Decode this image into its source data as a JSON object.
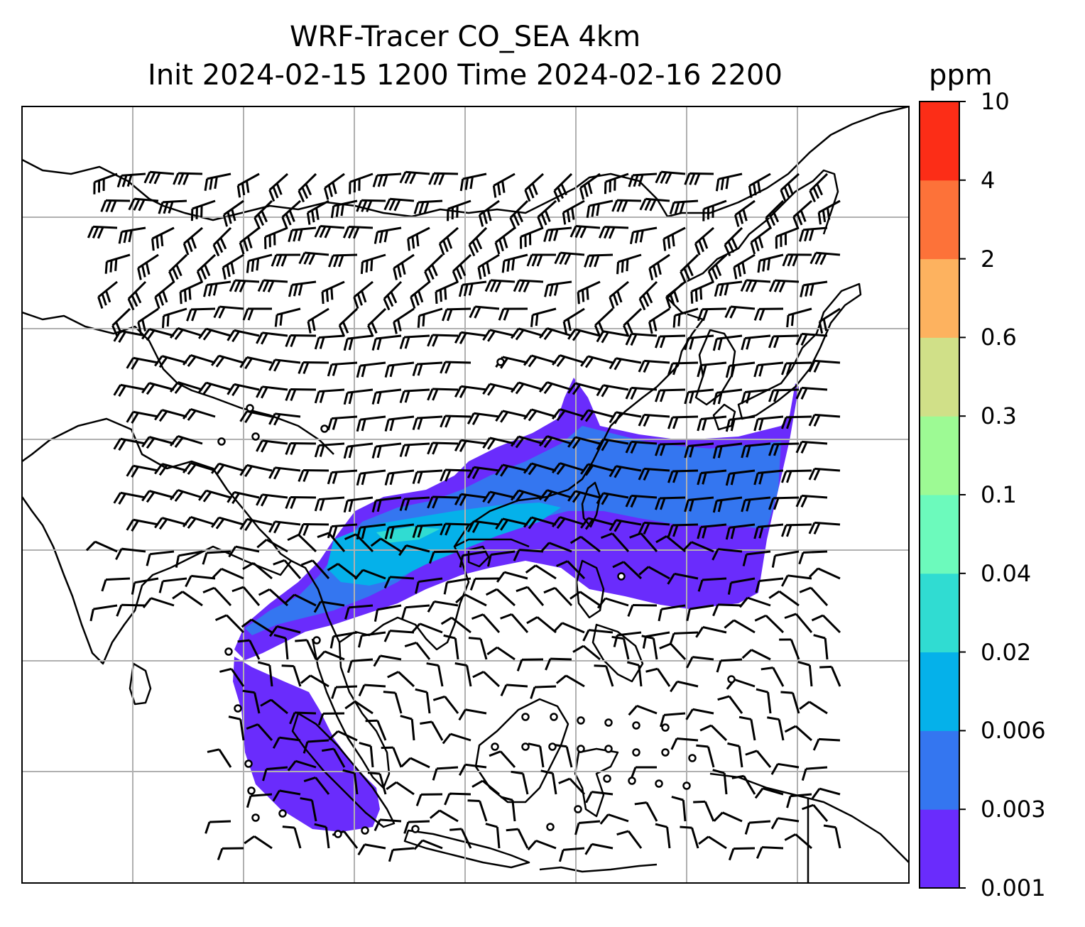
{
  "title": {
    "line1": "WRF-Tracer CO_SEA 4km",
    "line2": "Init 2024-02-15 1200 Time 2024-02-16 2200"
  },
  "colorbar": {
    "unit": "ppm",
    "levels": [
      "0.001",
      "0.003",
      "0.006",
      "0.02",
      "0.04",
      "0.1",
      "0.3",
      "0.6",
      "2",
      "4",
      "10"
    ],
    "colors": [
      "#6a2cfc",
      "#3476f0",
      "#05b1ea",
      "#30dcd2",
      "#6cfabc",
      "#9dfa94",
      "#d0e088",
      "#fdb25f",
      "#fd7239",
      "#fc2d17"
    ]
  },
  "map": {
    "background": "#ffffff",
    "coastline_color": "#000000",
    "grid_color": "#b0b0b0",
    "barb_color": "#000000",
    "plume_colors": {
      "low": "#6a2cfc",
      "mid": "#3476f0",
      "high": "#05b1ea",
      "peak": "#30dcd2"
    }
  }
}
